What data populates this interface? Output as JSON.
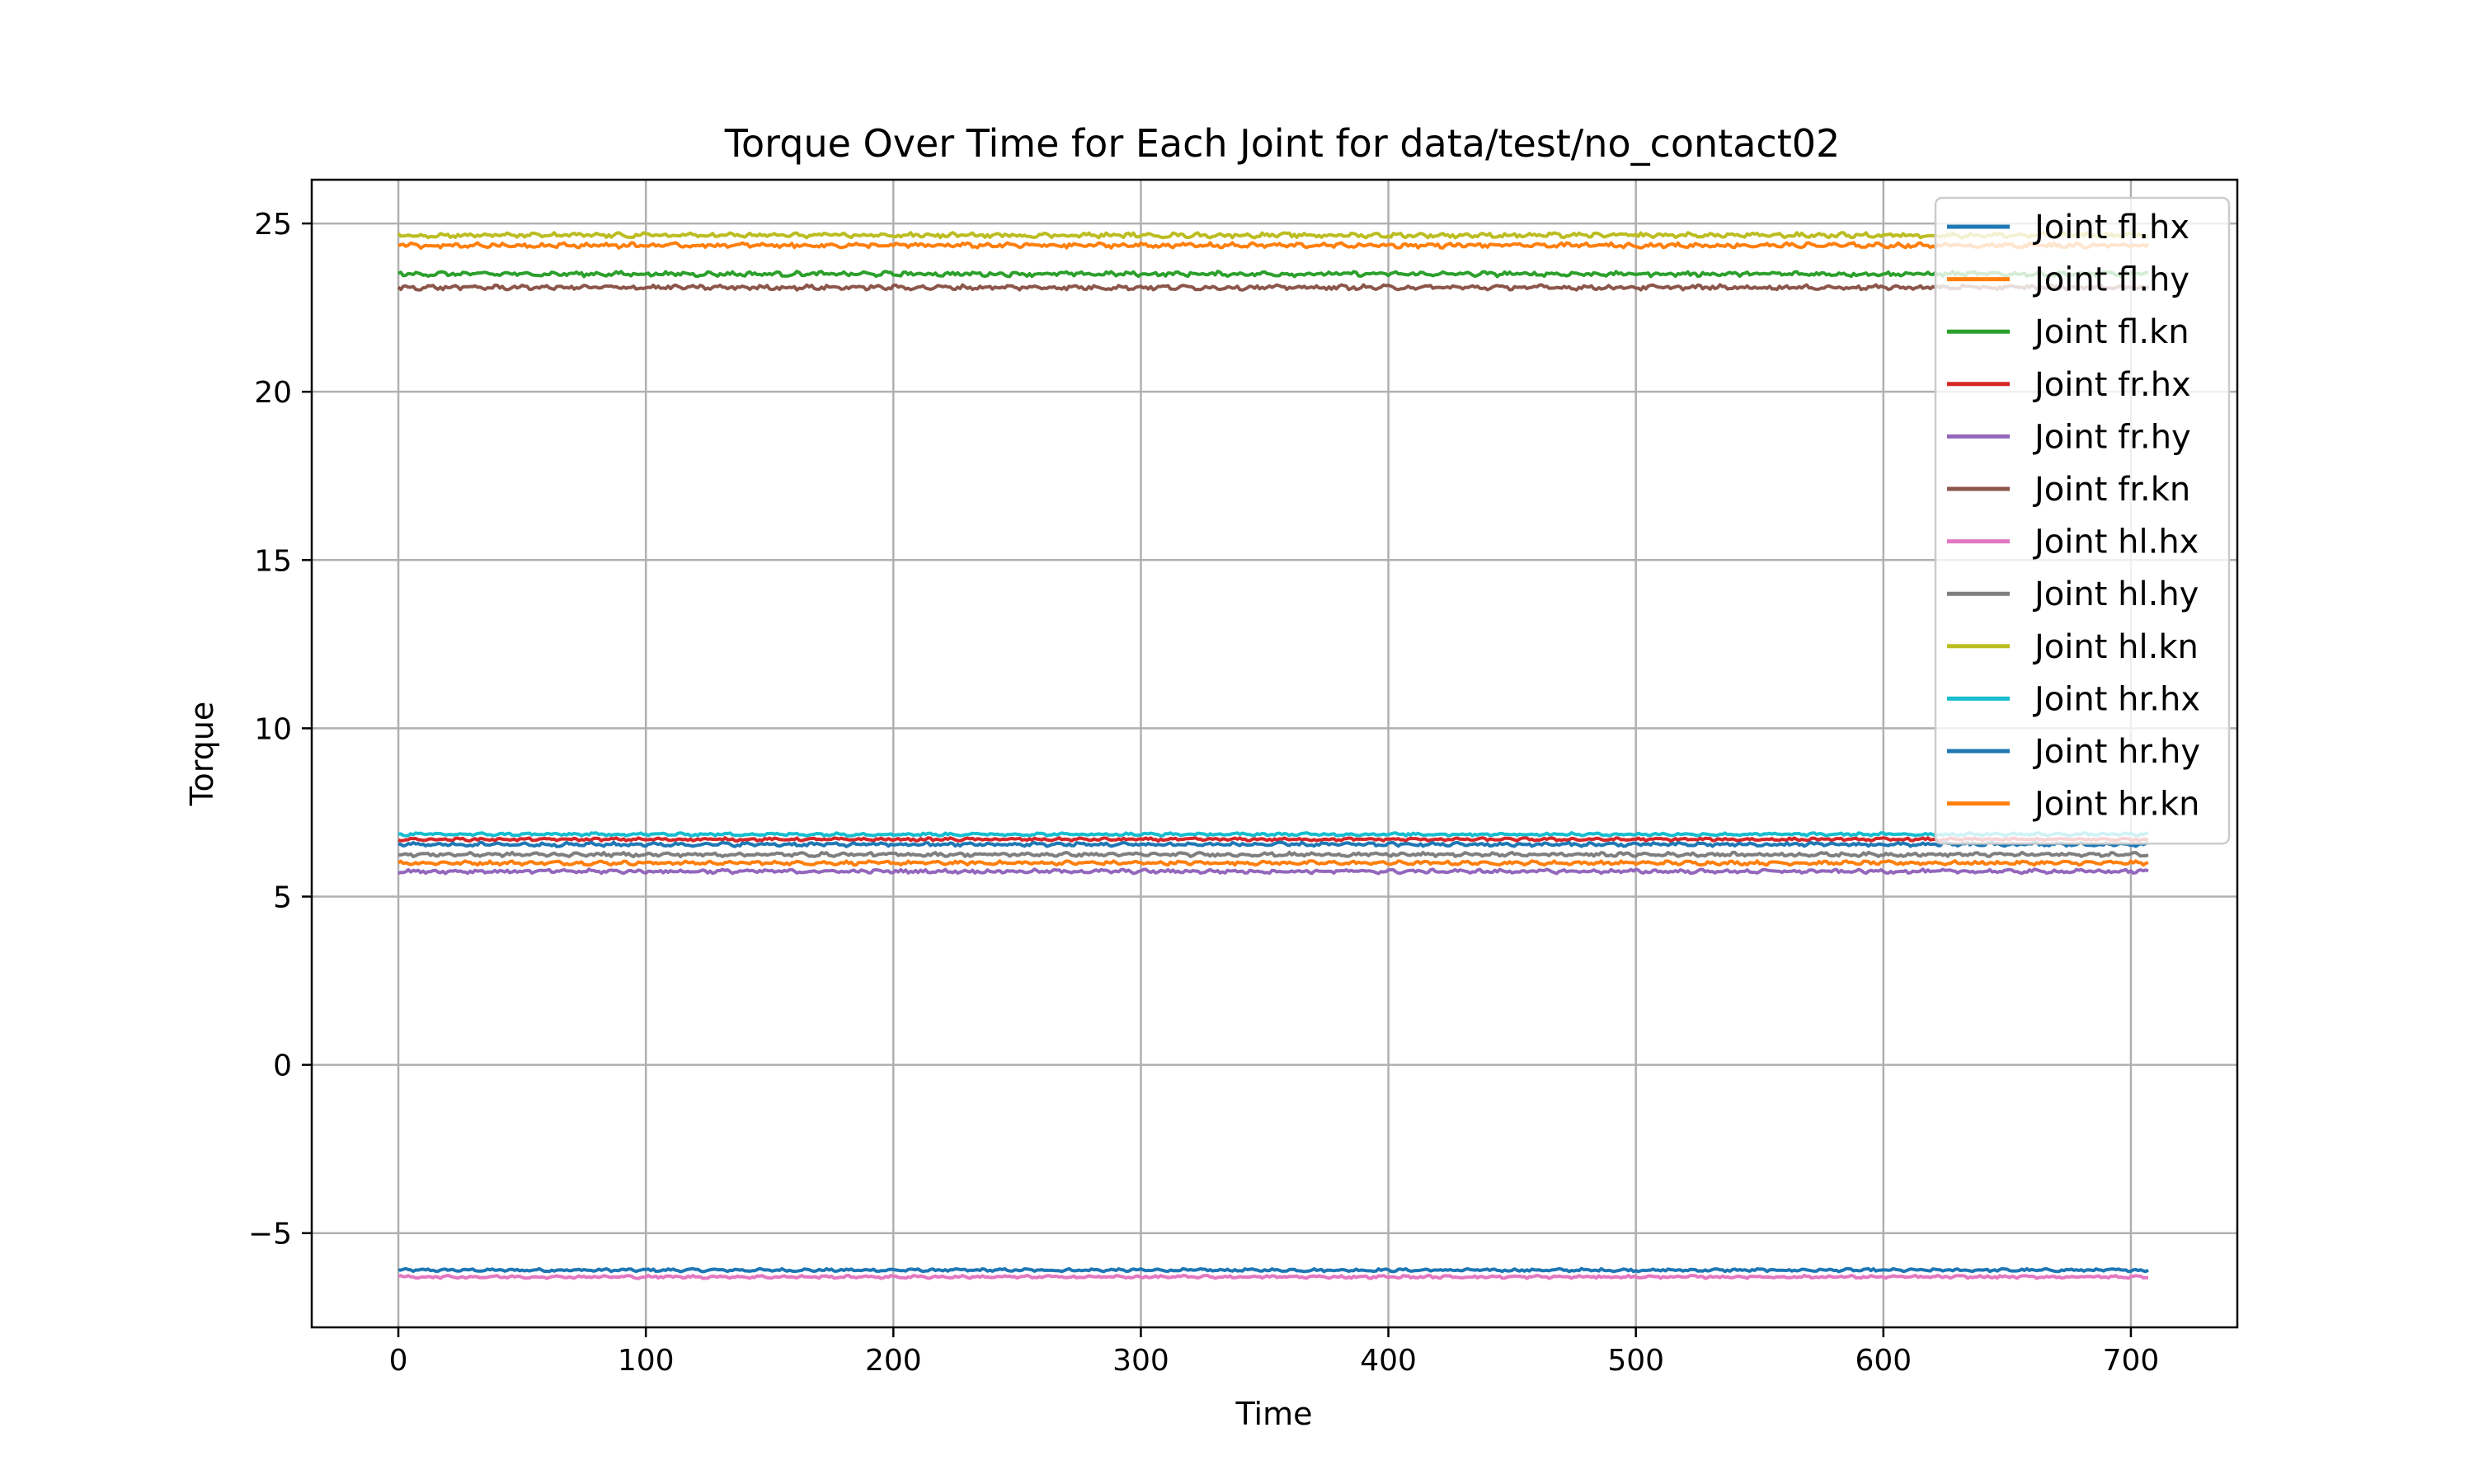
{
  "chart_data": {
    "type": "line",
    "title": "Torque Over Time for Each Joint for data/test/no_contact02",
    "xlabel": "Time",
    "ylabel": "Torque",
    "xlim": [
      -35,
      743
    ],
    "ylim": [
      -7.8,
      26.3
    ],
    "x_ticks": [
      0,
      100,
      200,
      300,
      400,
      500,
      600,
      700
    ],
    "y_ticks": [
      -5,
      0,
      5,
      10,
      15,
      20,
      25
    ],
    "y_tick_labels": [
      "−5",
      "0",
      "5",
      "10",
      "15",
      "20",
      "25"
    ],
    "x_range": [
      0,
      707
    ],
    "grid": true,
    "legend_position": "upper right",
    "series": [
      {
        "name": "Joint fl.hx",
        "color": "#1f77b4",
        "level": -6.1,
        "noise": 0.03
      },
      {
        "name": "Joint fl.hy",
        "color": "#ff7f0e",
        "level": 6.0,
        "noise": 0.04
      },
      {
        "name": "Joint fl.kn",
        "color": "#2ca02c",
        "level": 23.5,
        "noise": 0.05
      },
      {
        "name": "Joint fr.hx",
        "color": "#d62728",
        "level": 6.7,
        "noise": 0.03
      },
      {
        "name": "Joint fr.hy",
        "color": "#9467bd",
        "level": 5.75,
        "noise": 0.04
      },
      {
        "name": "Joint fr.kn",
        "color": "#8c564b",
        "level": 23.1,
        "noise": 0.05
      },
      {
        "name": "Joint hl.hx",
        "color": "#e377c2",
        "level": -6.3,
        "noise": 0.03
      },
      {
        "name": "Joint hl.hy",
        "color": "#7f7f7f",
        "level": 6.25,
        "noise": 0.04
      },
      {
        "name": "Joint hl.kn",
        "color": "#bcbd22",
        "level": 24.65,
        "noise": 0.05
      },
      {
        "name": "Joint hr.hx",
        "color": "#17becf",
        "level": 6.85,
        "noise": 0.03
      },
      {
        "name": "Joint hr.hy",
        "color": "#1f77b4",
        "level": 6.55,
        "noise": 0.04
      },
      {
        "name": "Joint hr.kn",
        "color": "#ff7f0e",
        "level": 24.35,
        "noise": 0.05
      }
    ]
  }
}
